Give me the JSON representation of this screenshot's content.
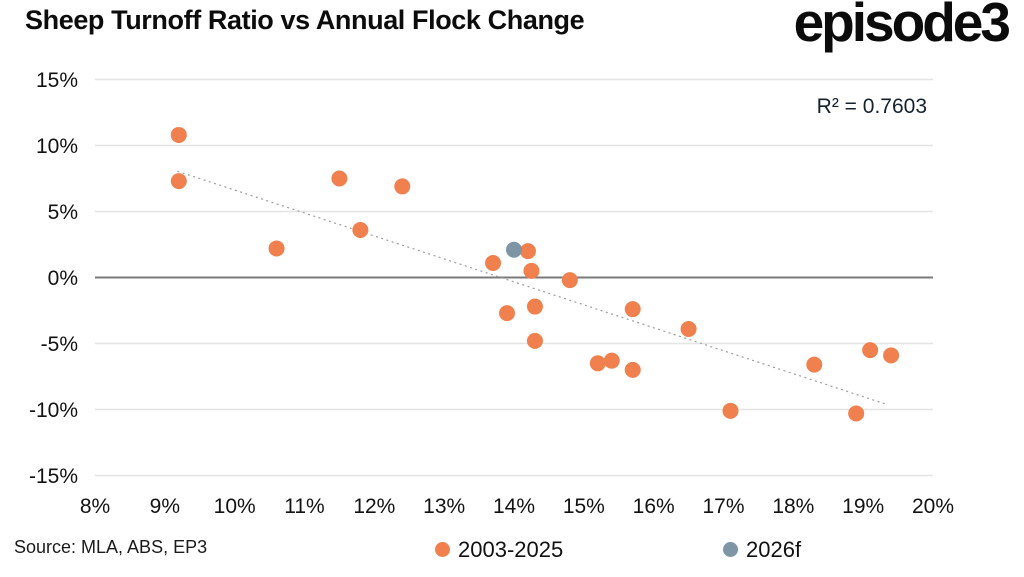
{
  "header": {
    "title": "Sheep Turnoff Ratio vs Annual Flock Change",
    "logo": "episode3"
  },
  "footer": {
    "source": "Source: MLA, ABS, EP3"
  },
  "legend": [
    {
      "label": "2003-2025",
      "color": "#F0804D"
    },
    {
      "label": "2026f",
      "color": "#7E95A5"
    }
  ],
  "colors": {
    "orange": "#F0804D",
    "slate": "#7E95A5",
    "gridline": "#E4E4E4",
    "zero_line": "#7A7A7A",
    "trendline": "#9C9C9C",
    "text": "#121212"
  },
  "chart_data": {
    "type": "scatter",
    "title": "Sheep Turnoff Ratio vs Annual Flock Change",
    "xlabel": "",
    "ylabel": "",
    "xlim": [
      8,
      20
    ],
    "ylim": [
      -15,
      15
    ],
    "grid": "horizontal",
    "legend_position": "bottom",
    "x_tick_values": [
      8,
      9,
      10,
      11,
      12,
      13,
      14,
      15,
      16,
      17,
      18,
      19,
      20
    ],
    "x_tick_labels": [
      "8%",
      "9%",
      "10%",
      "11%",
      "12%",
      "13%",
      "14%",
      "15%",
      "16%",
      "17%",
      "18%",
      "19%",
      "20%"
    ],
    "y_tick_values": [
      15,
      10,
      5,
      0,
      -5,
      -10,
      -15
    ],
    "y_tick_labels": [
      "15%",
      "10%",
      "5%",
      "0%",
      "-5%",
      "-10%",
      "-15%"
    ],
    "series": [
      {
        "name": "2003-2025",
        "color": "#F0804D",
        "points": [
          [
            9.2,
            10.8
          ],
          [
            9.2,
            7.3
          ],
          [
            10.6,
            2.2
          ],
          [
            11.5,
            7.5
          ],
          [
            11.8,
            3.6
          ],
          [
            12.4,
            6.9
          ],
          [
            13.7,
            1.1
          ],
          [
            13.9,
            -2.7
          ],
          [
            14.2,
            2.0
          ],
          [
            14.25,
            0.5
          ],
          [
            14.3,
            -2.2
          ],
          [
            14.3,
            -4.8
          ],
          [
            14.8,
            -0.2
          ],
          [
            15.2,
            -6.5
          ],
          [
            15.4,
            -6.3
          ],
          [
            15.7,
            -2.4
          ],
          [
            15.7,
            -7.0
          ],
          [
            16.5,
            -3.9
          ],
          [
            17.1,
            -10.1
          ],
          [
            18.3,
            -6.6
          ],
          [
            18.9,
            -10.3
          ],
          [
            19.1,
            -5.5
          ],
          [
            19.4,
            -5.9
          ]
        ]
      },
      {
        "name": "2026f",
        "color": "#7E95A5",
        "points": [
          [
            14.0,
            2.1
          ]
        ]
      }
    ],
    "trendline": {
      "start": [
        9.18,
        8.05
      ],
      "end": [
        19.33,
        -9.6
      ],
      "r2": 0.7603
    },
    "r2_label": "R² = 0.7603"
  }
}
